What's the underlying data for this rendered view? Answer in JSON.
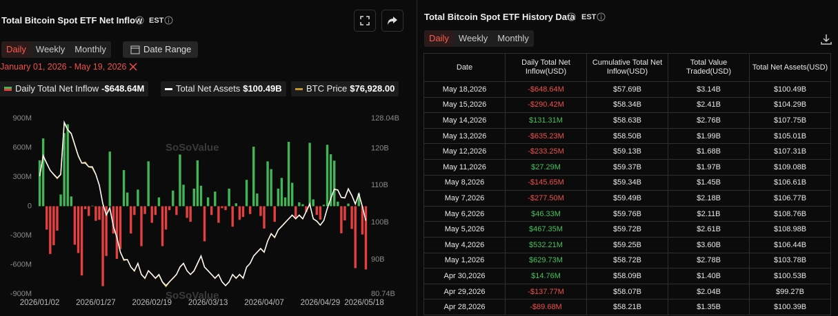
{
  "left": {
    "title": "Total Bitcoin Spot ETF Net Inflow",
    "timezone": "EST",
    "tabs": [
      "Daily",
      "Weekly",
      "Monthly"
    ],
    "date_range_button": "Date Range",
    "date_range": "January 01, 2026 - May 19, 2026",
    "legend_values": [
      "-$648.64M",
      "$100.49B",
      "$76,928.00"
    ]
  },
  "watermark": "SoSoValue",
  "chart_data": {
    "type": "combo",
    "categories": [
      "2026/01/02",
      null,
      null,
      null,
      null,
      null,
      null,
      null,
      null,
      null,
      null,
      null,
      null,
      null,
      null,
      null,
      "2026/01/27",
      null,
      null,
      null,
      null,
      null,
      null,
      null,
      null,
      null,
      null,
      null,
      null,
      null,
      null,
      null,
      "2026/02/19",
      null,
      null,
      null,
      null,
      null,
      null,
      null,
      null,
      null,
      null,
      null,
      null,
      null,
      null,
      null,
      "2026/03/13",
      null,
      null,
      null,
      null,
      null,
      null,
      null,
      null,
      null,
      null,
      null,
      null,
      null,
      null,
      null,
      "2026/04/07",
      null,
      null,
      null,
      null,
      null,
      null,
      null,
      null,
      null,
      null,
      null,
      null,
      null,
      null,
      null,
      "2026/04/29",
      null,
      null,
      null,
      null,
      null,
      null,
      null,
      null,
      null,
      null,
      null,
      null,
      "2026/05/18"
    ],
    "series": [
      {
        "name": "Daily Total Net Inflow",
        "type": "bar",
        "color": "#44b556",
        "negative_color": "#e5403f",
        "values": [
          470,
          695,
          -240,
          -490,
          -400,
          -250,
          120,
          750,
          840,
          100,
          -395,
          -480,
          -710,
          -30,
          -100,
          5,
          -150,
          -140,
          -820,
          -510,
          560,
          -280,
          -540,
          -440,
          370,
          140,
          -280,
          -90,
          170,
          -410,
          -80,
          460,
          -170,
          -90,
          90,
          -410,
          -240,
          -40,
          160,
          -90,
          530,
          220,
          -120,
          -160,
          180,
          470,
          210,
          -360,
          90,
          -90,
          150,
          -170,
          -20,
          -40,
          180,
          -210,
          30,
          -140,
          -110,
          270,
          -80,
          610,
          130,
          -100,
          -230,
          460,
          380,
          -160,
          180,
          290,
          90,
          660,
          240,
          -120,
          40,
          20,
          -60,
          650,
          70,
          -89.68,
          -137.77,
          14.76,
          629.73,
          532.21,
          467.35,
          46.33,
          -277.5,
          -145.65,
          27.29,
          -233.25,
          -635.23,
          131.31,
          -290.42,
          -648.64
        ]
      },
      {
        "name": "Total Net Assets",
        "type": "line",
        "axis": "y2",
        "color": "#ffffff",
        "values": [
          112.5,
          118,
          116,
          114,
          113,
          112,
          113,
          127,
          125,
          124,
          121,
          118,
          116,
          116,
          115,
          115,
          113,
          110,
          105,
          102,
          104,
          99,
          96,
          92,
          90,
          90,
          88,
          87,
          89,
          86,
          85,
          87,
          86,
          85,
          86,
          84,
          83,
          84,
          85,
          86,
          88,
          89,
          87,
          86,
          87,
          89,
          91,
          88,
          87,
          86,
          85,
          86,
          84,
          83,
          84,
          86,
          85,
          86,
          85,
          88,
          89,
          91,
          92,
          93,
          92,
          95,
          97,
          96,
          98,
          99,
          100,
          101,
          102,
          101,
          102,
          101,
          103,
          105,
          101,
          100.39,
          99.27,
          100.53,
          103.78,
          106.44,
          108.98,
          108.76,
          106.77,
          106.61,
          109.08,
          107.31,
          105.01,
          107.75,
          104.29,
          100.49
        ]
      },
      {
        "name": "BTC Price",
        "type": "line",
        "axis": "y3",
        "color": "#c9952b",
        "values": [
          86000,
          90200,
          88700,
          87300,
          86400,
          85600,
          86400,
          97000,
          95600,
          94800,
          92500,
          90200,
          88800,
          89000,
          88000,
          87800,
          86400,
          84300,
          80500,
          78200,
          79300,
          75800,
          73600,
          70500,
          68700,
          68900,
          67400,
          66500,
          68100,
          65800,
          65000,
          66600,
          65900,
          65000,
          65700,
          64200,
          63300,
          64300,
          65000,
          65800,
          67300,
          68100,
          66600,
          65800,
          66500,
          68000,
          69600,
          67300,
          66600,
          65800,
          65000,
          65800,
          64300,
          63500,
          64300,
          65800,
          65000,
          65800,
          65000,
          67300,
          68100,
          69600,
          70400,
          71100,
          70400,
          72700,
          74200,
          73400,
          75000,
          75700,
          76500,
          77300,
          78000,
          77300,
          78000,
          77300,
          78800,
          80300,
          77300,
          76800,
          76000,
          76900,
          79400,
          81400,
          83400,
          83200,
          81700,
          81600,
          83400,
          82100,
          80300,
          82400,
          79800,
          76928
        ]
      }
    ],
    "ylim": [
      -900,
      900
    ],
    "yticks": [
      {
        "value": -900,
        "label": "-900M"
      },
      {
        "value": -600,
        "label": "-600M"
      },
      {
        "value": -300,
        "label": "-300M"
      },
      0,
      {
        "value": 300,
        "label": "300M"
      },
      {
        "value": 600,
        "label": "600M"
      },
      {
        "value": 900,
        "label": "900M"
      }
    ],
    "y2lim": [
      80.74,
      128.04
    ],
    "y2ticks": [
      {
        "value": 80.74,
        "label": "80.74B"
      },
      {
        "value": 90,
        "label": "90B"
      },
      {
        "value": 100,
        "label": "100B"
      },
      {
        "value": 110,
        "label": "110B"
      },
      {
        "value": 120,
        "label": "120B"
      },
      {
        "value": 128.04,
        "label": "128.04B"
      }
    ],
    "y3lim": [
      61800,
      98000
    ],
    "grid": false
  },
  "right": {
    "title": "Total Bitcoin Spot ETF History Data",
    "timezone": "EST",
    "tabs": [
      "Daily",
      "Weekly",
      "Monthly"
    ],
    "table": {
      "columns": [
        "Date",
        "Daily Total Net Inflow(USD)",
        "Cumulative Total Net Inflow(USD)",
        "Total Value Traded(USD)",
        "Total Net Assets(USD)"
      ],
      "rows": [
        [
          "May 18,2026",
          "-$648.64M",
          "$57.69B",
          "$3.14B",
          "$100.49B"
        ],
        [
          "May 15,2026",
          "-$290.42M",
          "$58.34B",
          "$2.41B",
          "$104.29B"
        ],
        [
          "May 14,2026",
          "$131.31M",
          "$58.63B",
          "$2.76B",
          "$107.75B"
        ],
        [
          "May 13,2026",
          "-$635.23M",
          "$58.50B",
          "$1.99B",
          "$105.01B"
        ],
        [
          "May 12,2026",
          "-$233.25M",
          "$59.13B",
          "$1.68B",
          "$107.31B"
        ],
        [
          "May 11,2026",
          "$27.29M",
          "$59.37B",
          "$1.97B",
          "$109.08B"
        ],
        [
          "May 8,2026",
          "-$145.65M",
          "$59.34B",
          "$1.45B",
          "$106.61B"
        ],
        [
          "May 7,2026",
          "-$277.50M",
          "$59.49B",
          "$2.18B",
          "$106.77B"
        ],
        [
          "May 6,2026",
          "$46.33M",
          "$59.76B",
          "$2.11B",
          "$108.76B"
        ],
        [
          "May 5,2026",
          "$467.35M",
          "$59.72B",
          "$2.61B",
          "$108.98B"
        ],
        [
          "May 4,2026",
          "$532.21M",
          "$59.25B",
          "$3.60B",
          "$106.44B"
        ],
        [
          "May 1,2026",
          "$629.73M",
          "$58.72B",
          "$2.78B",
          "$103.78B"
        ],
        [
          "Apr 30,2026",
          "$14.76M",
          "$58.09B",
          "$1.40B",
          "$100.53B"
        ],
        [
          "Apr 29,2026",
          "-$137.77M",
          "$58.07B",
          "$2.04B",
          "$99.27B"
        ],
        [
          "Apr 28,2026",
          "-$89.68M",
          "$58.21B",
          "$1.35B",
          "$100.39B"
        ]
      ]
    }
  }
}
